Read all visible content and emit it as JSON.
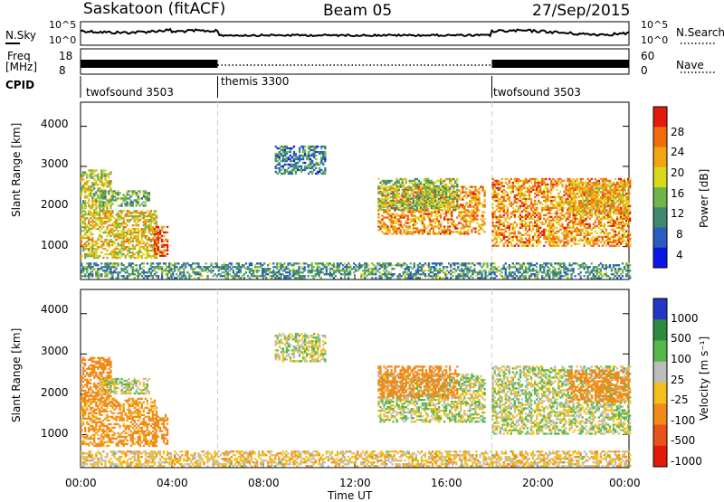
{
  "header": {
    "station": "Saskatoon (fitACF)",
    "beam": "Beam 05",
    "date": "27/Sep/2015"
  },
  "noise_panel": {
    "left_label": "N.Sky",
    "right_label": "N.Search",
    "yticks": [
      "10^5",
      "10^0"
    ],
    "right_yticks": [
      "10^5",
      "10^0"
    ]
  },
  "freq_panel": {
    "left_label_line1": "Freq",
    "left_label_line2": "[MHz]",
    "right_label": "Nave",
    "left_yticks": [
      "18",
      "8"
    ],
    "right_yticks": [
      "60",
      "0"
    ]
  },
  "cpid": {
    "label": "CPID",
    "segments": [
      {
        "name": "twofsound 3503",
        "start_hour": 0,
        "end_hour": 6
      },
      {
        "name": "themis 3300",
        "start_hour": 6,
        "end_hour": 18
      },
      {
        "name": "twofsound 3503",
        "start_hour": 18,
        "end_hour": 24
      }
    ]
  },
  "power_panel": {
    "ylabel": "Slant Range [km]",
    "yticks": [
      "4000",
      "3000",
      "2000",
      "1000"
    ],
    "colorbar_label": "Power [dB]",
    "colorbar_ticks": [
      "28",
      "24",
      "20",
      "16",
      "12",
      "8",
      "4"
    ],
    "colors": [
      "#0a16e6",
      "#2a5cc2",
      "#3f8a6e",
      "#6fb54a",
      "#d9d91a",
      "#f2a411",
      "#f26b0d",
      "#e61a0a"
    ]
  },
  "velocity_panel": {
    "ylabel": "Slant Range [km]",
    "yticks": [
      "4000",
      "3000",
      "2000",
      "1000"
    ],
    "colorbar_label": "Velocity [m s⁻¹]",
    "colorbar_ticks": [
      "1000",
      "500",
      "100",
      "25",
      "-25",
      "-100",
      "-500",
      "-1000"
    ],
    "colors": [
      "#2436c8",
      "#2f8a3e",
      "#55b848",
      "#bdbdbd",
      "#f4c01a",
      "#f28a1a",
      "#e8531a",
      "#e61a0a"
    ]
  },
  "xaxis": {
    "label": "Time UT",
    "ticks": [
      "00:00",
      "04:00",
      "08:00",
      "12:00",
      "16:00",
      "20:00",
      "00:00"
    ]
  },
  "chart_data": {
    "type": "heatmap",
    "title": "Saskatoon (fitACF)  Beam 05  27/Sep/2015",
    "xlabel": "Time UT",
    "ylabel": "Slant Range [km]",
    "xlim_hours": [
      0,
      24
    ],
    "ylim_km": [
      180,
      4600
    ],
    "power_colorbar": {
      "label": "Power [dB]",
      "range": [
        0,
        30
      ]
    },
    "velocity_colorbar": {
      "label": "Velocity [m s⁻¹]",
      "ticks": [
        1000,
        500,
        100,
        25,
        -25,
        -100,
        -500,
        -1000
      ]
    },
    "freq_mhz": [
      {
        "start_hour": 0,
        "end_hour": 6,
        "value": 11
      },
      {
        "start_hour": 6,
        "end_hour": 18,
        "value": 10
      },
      {
        "start_hour": 18,
        "end_hour": 24,
        "value": 11
      }
    ],
    "echo_regions": [
      {
        "t0": 0.0,
        "t1": 1.3,
        "r0": 1800,
        "r1": 2900,
        "power": 16,
        "vel": -300
      },
      {
        "t0": 0.0,
        "t1": 3.3,
        "r0": 700,
        "r1": 1900,
        "power": 18,
        "vel": -150
      },
      {
        "t0": 3.2,
        "t1": 3.8,
        "r0": 750,
        "r1": 1500,
        "power": 27,
        "vel": -200
      },
      {
        "t0": 0.8,
        "t1": 3.0,
        "r0": 2000,
        "r1": 2400,
        "power": 12,
        "vel": 0
      },
      {
        "t0": 8.5,
        "t1": 10.7,
        "r0": 2800,
        "r1": 3500,
        "power": 9,
        "vel": 0
      },
      {
        "t0": 13.0,
        "t1": 17.7,
        "r0": 1300,
        "r1": 2500,
        "power": 22,
        "vel": 0
      },
      {
        "t0": 13.0,
        "t1": 16.5,
        "r0": 1900,
        "r1": 2700,
        "power": 14,
        "vel": -200
      },
      {
        "t0": 18.0,
        "t1": 24.0,
        "r0": 1000,
        "r1": 2700,
        "power": 22,
        "vel": 0
      },
      {
        "t0": 21.3,
        "t1": 24.0,
        "r0": 1800,
        "r1": 2600,
        "power": 20,
        "vel": -250
      },
      {
        "t0": 0.0,
        "t1": 24.0,
        "r0": 200,
        "r1": 600,
        "power": 10,
        "vel": -50
      }
    ]
  }
}
